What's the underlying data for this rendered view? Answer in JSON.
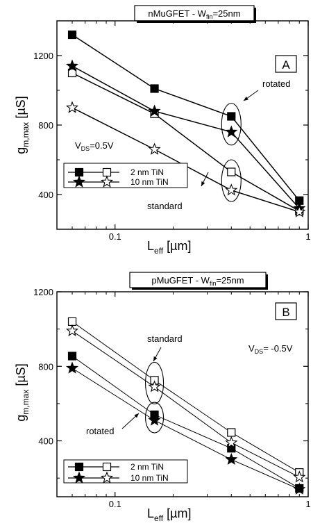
{
  "chart_data": [
    {
      "type": "line",
      "title_prefix": "nMuGFET - W",
      "title_sub": "fin",
      "title_suffix": "=25nm",
      "panel_letter": "A",
      "x_scale": "log",
      "xlim": [
        0.05,
        1.0
      ],
      "ylim": [
        200,
        1400
      ],
      "x_ticks": [
        {
          "value": 0.1,
          "label": "0.1"
        },
        {
          "value": 1,
          "label": "1"
        }
      ],
      "y_ticks": [
        {
          "value": 400,
          "label": "400"
        },
        {
          "value": 800,
          "label": "800"
        },
        {
          "value": 1200,
          "label": "1200"
        }
      ],
      "xlabel_main": "L",
      "xlabel_sub": "eff",
      "xlabel_unit": " [µm]",
      "ylabel_main": "g",
      "ylabel_sub": "m,max",
      "ylabel_unit": " [µS]",
      "x": [
        0.06,
        0.16,
        0.4,
        0.9
      ],
      "series": [
        {
          "marker": "filled-square",
          "values": [
            1320,
            1010,
            850,
            365
          ]
        },
        {
          "marker": "open-square",
          "values": [
            1100,
            865,
            530,
            305
          ]
        },
        {
          "marker": "filled-star",
          "values": [
            1140,
            880,
            760,
            320
          ]
        },
        {
          "marker": "open-star",
          "values": [
            900,
            660,
            425,
            300
          ]
        }
      ],
      "vds_main": "V",
      "vds_sub": "DS",
      "vds_value": "=0.5V",
      "legend_placement": "bottom-left",
      "legend": [
        {
          "label": "2 nm TiN",
          "markers": [
            "filled-square",
            "open-square"
          ]
        },
        {
          "label": "10 nm TiN",
          "markers": [
            "filled-star",
            "open-star"
          ]
        }
      ],
      "annotations": [
        {
          "text": "rotated",
          "x": 0.4,
          "y": 805
        },
        {
          "text": "standard",
          "x": 0.4,
          "y": 480
        }
      ],
      "grid": false
    },
    {
      "type": "line",
      "title_prefix": "pMuGFET - W",
      "title_sub": "fin",
      "title_suffix": "=25nm",
      "panel_letter": "B",
      "x_scale": "log",
      "xlim": [
        0.05,
        1.0
      ],
      "ylim": [
        100,
        1200
      ],
      "x_ticks": [
        {
          "value": 0.1,
          "label": "0.1"
        },
        {
          "value": 1,
          "label": "1"
        }
      ],
      "y_ticks": [
        {
          "value": 400,
          "label": "400"
        },
        {
          "value": 800,
          "label": "800"
        },
        {
          "value": 1200,
          "label": "1200"
        }
      ],
      "xlabel_main": "L",
      "xlabel_sub": "eff",
      "xlabel_unit": " [µm]",
      "ylabel_main": "g",
      "ylabel_sub": "m,max",
      "ylabel_unit": " [µS]",
      "x": [
        0.06,
        0.16,
        0.4,
        0.9
      ],
      "series": [
        {
          "marker": "filled-square",
          "values": [
            855,
            540,
            360,
            145
          ]
        },
        {
          "marker": "open-square",
          "values": [
            1040,
            725,
            445,
            230
          ]
        },
        {
          "marker": "filled-star",
          "values": [
            790,
            510,
            300,
            140
          ]
        },
        {
          "marker": "open-star",
          "values": [
            990,
            690,
            390,
            205
          ]
        }
      ],
      "vds_main": "V",
      "vds_sub": "DS",
      "vds_value": "= -0.5V",
      "legend_placement": "bottom-left",
      "legend": [
        {
          "label": "2 nm TiN",
          "markers": [
            "filled-square",
            "open-square"
          ]
        },
        {
          "label": "10 nm TiN",
          "markers": [
            "filled-star",
            "open-star"
          ]
        }
      ],
      "annotations": [
        {
          "text": "standard",
          "x": 0.16,
          "y": 710
        },
        {
          "text": "rotated",
          "x": 0.16,
          "y": 525
        }
      ],
      "grid": false
    }
  ]
}
